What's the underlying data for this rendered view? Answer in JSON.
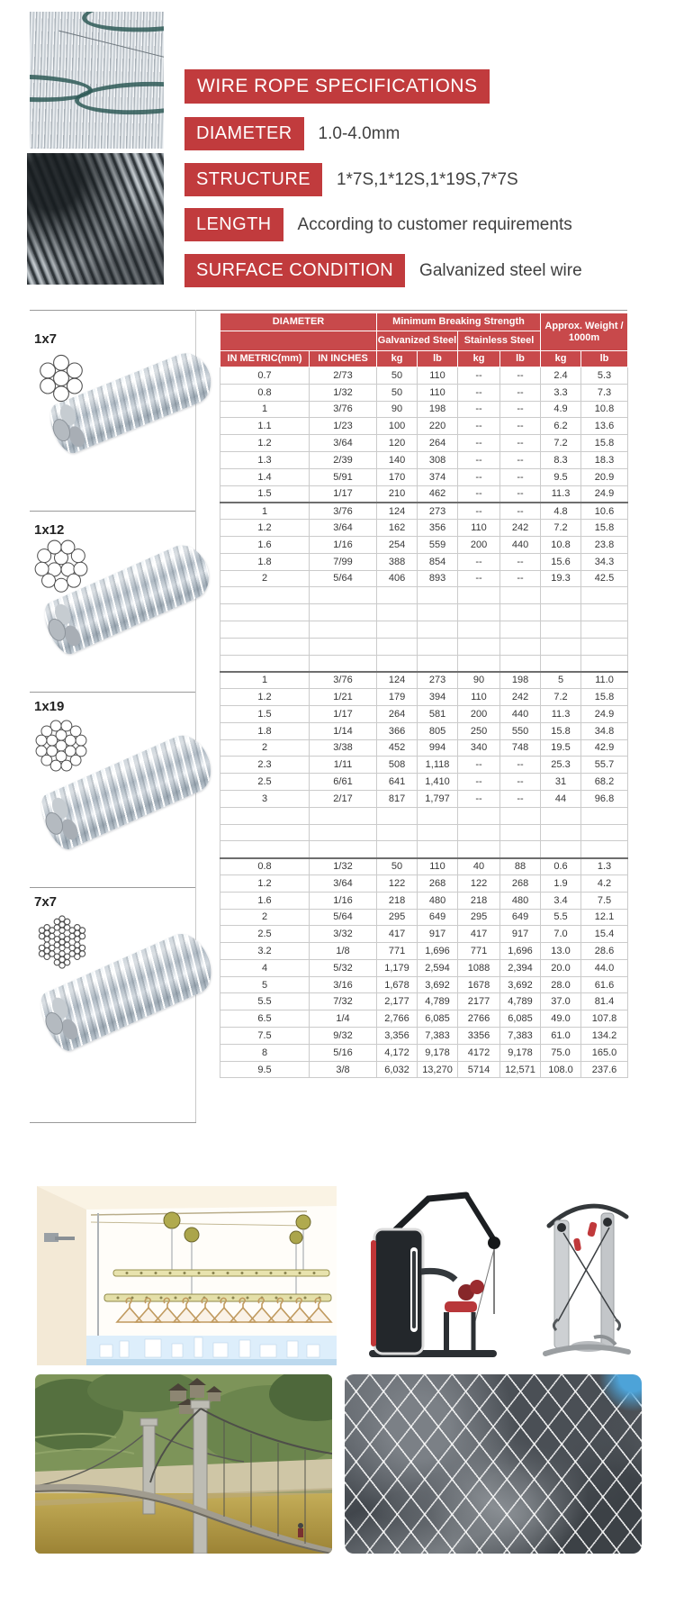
{
  "colors": {
    "accent_red": "#c13b3d",
    "table_header_red": "#c8494b"
  },
  "banners": {
    "title": "WIRE ROPE SPECIFICATIONS",
    "specs": [
      {
        "label": "DIAMETER",
        "value": "1.0-4.0mm"
      },
      {
        "label": "STRUCTURE",
        "value": "1*7S,1*12S,1*19S,7*7S"
      },
      {
        "label": "LENGTH",
        "value": "According to customer requirements"
      },
      {
        "label": "SURFACE CONDITION",
        "value": "Galvanized steel wire"
      }
    ]
  },
  "table": {
    "headers": {
      "diameter": "DIAMETER",
      "breaking": "Minimum Breaking Strength",
      "weight": "Approx. Weight / 1000m",
      "galvanized": "Galvanized Steel",
      "stainless": "Stainless Steel",
      "metric": "IN METRIC(mm)",
      "inches": "IN INCHES",
      "kg": "kg",
      "lb": "lb"
    },
    "sections": [
      {
        "label": "1x7",
        "empty_rows_after": 0,
        "rows": [
          [
            "0.7",
            "2/73",
            "50",
            "110",
            "--",
            "--",
            "2.4",
            "5.3"
          ],
          [
            "0.8",
            "1/32",
            "50",
            "110",
            "--",
            "--",
            "3.3",
            "7.3"
          ],
          [
            "1",
            "3/76",
            "90",
            "198",
            "--",
            "--",
            "4.9",
            "10.8"
          ],
          [
            "1.1",
            "1/23",
            "100",
            "220",
            "--",
            "--",
            "6.2",
            "13.6"
          ],
          [
            "1.2",
            "3/64",
            "120",
            "264",
            "--",
            "--",
            "7.2",
            "15.8"
          ],
          [
            "1.3",
            "2/39",
            "140",
            "308",
            "--",
            "--",
            "8.3",
            "18.3"
          ],
          [
            "1.4",
            "5/91",
            "170",
            "374",
            "--",
            "--",
            "9.5",
            "20.9"
          ],
          [
            "1.5",
            "1/17",
            "210",
            "462",
            "--",
            "--",
            "11.3",
            "24.9"
          ]
        ]
      },
      {
        "label": "1x12",
        "empty_rows_after": 5,
        "rows": [
          [
            "1",
            "3/76",
            "124",
            "273",
            "--",
            "--",
            "4.8",
            "10.6"
          ],
          [
            "1.2",
            "3/64",
            "162",
            "356",
            "110",
            "242",
            "7.2",
            "15.8"
          ],
          [
            "1.6",
            "1/16",
            "254",
            "559",
            "200",
            "440",
            "10.8",
            "23.8"
          ],
          [
            "1.8",
            "7/99",
            "388",
            "854",
            "--",
            "--",
            "15.6",
            "34.3"
          ],
          [
            "2",
            "5/64",
            "406",
            "893",
            "--",
            "--",
            "19.3",
            "42.5"
          ]
        ]
      },
      {
        "label": "1x19",
        "empty_rows_after": 3,
        "rows": [
          [
            "1",
            "3/76",
            "124",
            "273",
            "90",
            "198",
            "5",
            "11.0"
          ],
          [
            "1.2",
            "1/21",
            "179",
            "394",
            "110",
            "242",
            "7.2",
            "15.8"
          ],
          [
            "1.5",
            "1/17",
            "264",
            "581",
            "200",
            "440",
            "11.3",
            "24.9"
          ],
          [
            "1.8",
            "1/14",
            "366",
            "805",
            "250",
            "550",
            "15.8",
            "34.8"
          ],
          [
            "2",
            "3/38",
            "452",
            "994",
            "340",
            "748",
            "19.5",
            "42.9"
          ],
          [
            "2.3",
            "1/11",
            "508",
            "1,118",
            "--",
            "--",
            "25.3",
            "55.7"
          ],
          [
            "2.5",
            "6/61",
            "641",
            "1,410",
            "--",
            "--",
            "31",
            "68.2"
          ],
          [
            "3",
            "2/17",
            "817",
            "1,797",
            "--",
            "--",
            "44",
            "96.8"
          ]
        ]
      },
      {
        "label": "7x7",
        "empty_rows_after": 0,
        "rows": [
          [
            "0.8",
            "1/32",
            "50",
            "110",
            "40",
            "88",
            "0.6",
            "1.3"
          ],
          [
            "1.2",
            "3/64",
            "122",
            "268",
            "122",
            "268",
            "1.9",
            "4.2"
          ],
          [
            "1.6",
            "1/16",
            "218",
            "480",
            "218",
            "480",
            "3.4",
            "7.5"
          ],
          [
            "2",
            "5/64",
            "295",
            "649",
            "295",
            "649",
            "5.5",
            "12.1"
          ],
          [
            "2.5",
            "3/32",
            "417",
            "917",
            "417",
            "917",
            "7.0",
            "15.4"
          ],
          [
            "3.2",
            "1/8",
            "771",
            "1,696",
            "771",
            "1,696",
            "13.0",
            "28.6"
          ],
          [
            "4",
            "5/32",
            "1,179",
            "2,594",
            "1088",
            "2,394",
            "20.0",
            "44.0"
          ],
          [
            "5",
            "3/16",
            "1,678",
            "3,692",
            "1678",
            "3,692",
            "28.0",
            "61.6"
          ],
          [
            "5.5",
            "7/32",
            "2,177",
            "4,789",
            "2177",
            "4,789",
            "37.0",
            "81.4"
          ],
          [
            "6.5",
            "1/4",
            "2,766",
            "6,085",
            "2766",
            "6,085",
            "49.0",
            "107.8"
          ],
          [
            "7.5",
            "9/32",
            "3,356",
            "7,383",
            "3356",
            "7,383",
            "61.0",
            "134.2"
          ],
          [
            "8",
            "5/16",
            "4,172",
            "9,178",
            "4172",
            "9,178",
            "75.0",
            "165.0"
          ],
          [
            "9.5",
            "3/8",
            "6,032",
            "13,270",
            "5714",
            "12,571",
            "108.0",
            "237.6"
          ]
        ]
      }
    ]
  }
}
